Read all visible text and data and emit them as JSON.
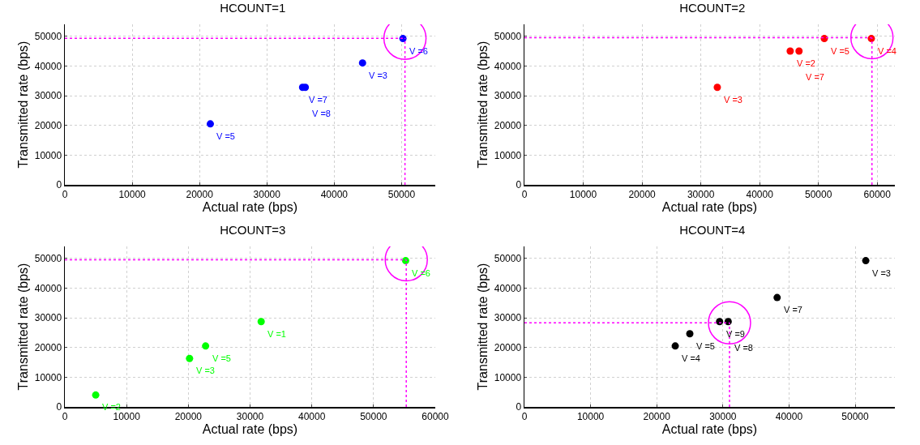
{
  "chart_data": [
    {
      "type": "scatter",
      "title": "HCOUNT=1",
      "xlabel": "Actual rate (bps)",
      "ylabel": "Transmitted rate (bps)",
      "marker": "circle",
      "grid": true,
      "xlim": [
        0,
        55000
      ],
      "xticks": [
        0,
        10000,
        20000,
        30000,
        40000,
        50000
      ],
      "ylim": [
        0,
        54000
      ],
      "yticks": [
        0,
        10000,
        20000,
        30000,
        40000,
        50000
      ],
      "series": [
        {
          "color": "#0000ff",
          "x": [
            21600,
            35300,
            35700,
            44200,
            50200
          ],
          "values": [
            20500,
            32800,
            32800,
            41000,
            49200
          ]
        }
      ],
      "annotations": [
        {
          "text": "V =5",
          "x": 21600,
          "y": 20500
        },
        {
          "text": "V =7",
          "x": 35300,
          "y": 32800
        },
        {
          "text": "V =8",
          "x": 35700,
          "y": 32800
        },
        {
          "text": "V =3",
          "x": 44200,
          "y": 41000
        },
        {
          "text": "V =6",
          "x": 50200,
          "y": 49200
        }
      ],
      "ref_lines": [
        {
          "axis": "y",
          "value": 49300,
          "color": "#ff00ff",
          "line_style": "dotted"
        },
        {
          "axis": "x",
          "value": 50500,
          "color": "#ff00ff",
          "line_style": "dotted"
        }
      ]
    },
    {
      "type": "scatter",
      "title": "HCOUNT=2",
      "xlabel": "Actual rate (bps)",
      "ylabel": "Transmitted rate (bps)",
      "marker": "circle",
      "grid": true,
      "xlim": [
        0,
        63000
      ],
      "xticks": [
        0,
        10000,
        20000,
        30000,
        40000,
        50000,
        60000
      ],
      "ylim": [
        0,
        54000
      ],
      "yticks": [
        0,
        10000,
        20000,
        30000,
        40000,
        50000
      ],
      "series": [
        {
          "color": "#ff0000",
          "x": [
            32800,
            45200,
            46700,
            51000,
            59000
          ],
          "values": [
            32800,
            45000,
            45000,
            49200,
            49200
          ]
        }
      ],
      "annotations": [
        {
          "text": "V =3",
          "x": 32800,
          "y": 32800
        },
        {
          "text": "V =2",
          "x": 45200,
          "y": 45000
        },
        {
          "text": "V =7",
          "x": 46700,
          "y": 45000
        },
        {
          "text": "V =5",
          "x": 51000,
          "y": 49200
        },
        {
          "text": "V =4",
          "x": 59000,
          "y": 49200
        }
      ],
      "ref_lines": [
        {
          "axis": "y",
          "value": 49500,
          "color": "#ff00ff",
          "line_style": "dotted"
        },
        {
          "axis": "x",
          "value": 59100,
          "color": "#ff00ff",
          "line_style": "dotted"
        }
      ]
    },
    {
      "type": "scatter",
      "title": "HCOUNT=3",
      "xlabel": "Actual rate (bps)",
      "ylabel": "Transmitted rate (bps)",
      "marker": "circle",
      "grid": true,
      "xlim": [
        0,
        60000
      ],
      "xticks": [
        0,
        10000,
        20000,
        30000,
        40000,
        50000,
        60000
      ],
      "ylim": [
        0,
        54000
      ],
      "yticks": [
        0,
        10000,
        20000,
        30000,
        40000,
        50000
      ],
      "series": [
        {
          "color": "#00ff00",
          "x": [
            5000,
            20200,
            22800,
            31800,
            55200
          ],
          "values": [
            4000,
            16300,
            20500,
            28700,
            49200
          ]
        }
      ],
      "annotations": [
        {
          "text": "V =2",
          "x": 5000,
          "y": 4000
        },
        {
          "text": "V =3",
          "x": 20200,
          "y": 16300
        },
        {
          "text": "V =5",
          "x": 22800,
          "y": 20500
        },
        {
          "text": "V =1",
          "x": 31800,
          "y": 28700
        },
        {
          "text": "V =6",
          "x": 55200,
          "y": 49200
        }
      ],
      "ref_lines": [
        {
          "axis": "y",
          "value": 49500,
          "color": "#ff00ff",
          "line_style": "dotted"
        },
        {
          "axis": "x",
          "value": 55300,
          "color": "#ff00ff",
          "line_style": "dotted"
        }
      ]
    },
    {
      "type": "scatter",
      "title": "HCOUNT=4",
      "xlabel": "Actual rate (bps)",
      "ylabel": "Transmitted rate (bps)",
      "marker": "circle",
      "grid": true,
      "xlim": [
        0,
        56000
      ],
      "xticks": [
        0,
        10000,
        20000,
        30000,
        40000,
        50000
      ],
      "ylim": [
        0,
        54000
      ],
      "yticks": [
        0,
        10000,
        20000,
        30000,
        40000,
        50000
      ],
      "series": [
        {
          "color": "#000000",
          "x": [
            22800,
            25000,
            29500,
            30800,
            38200,
            51600
          ],
          "values": [
            20500,
            24600,
            28700,
            28700,
            36800,
            49200
          ]
        }
      ],
      "annotations": [
        {
          "text": "V =4",
          "x": 22800,
          "y": 20500
        },
        {
          "text": "V =5",
          "x": 25000,
          "y": 24600
        },
        {
          "text": "V =9",
          "x": 29500,
          "y": 28700
        },
        {
          "text": "V =8",
          "x": 30800,
          "y": 28700
        },
        {
          "text": "V =7",
          "x": 38200,
          "y": 36800
        },
        {
          "text": "V =3",
          "x": 51600,
          "y": 49200
        }
      ],
      "ref_lines": [
        {
          "axis": "y",
          "value": 28300,
          "color": "#ff00ff",
          "line_style": "dotted"
        },
        {
          "axis": "x",
          "value": 31000,
          "color": "#ff00ff",
          "line_style": "dotted"
        }
      ]
    }
  ]
}
